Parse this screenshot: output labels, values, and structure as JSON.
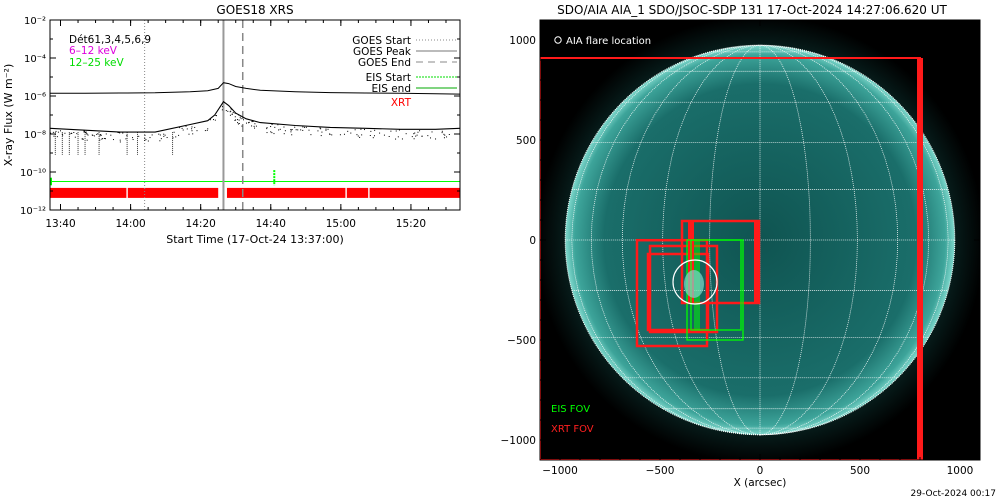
{
  "colors": {
    "xrt": "#ff0000",
    "eis": "#00ff00",
    "goes_low": "#dd00dd",
    "goes_high": "#00dd00",
    "aia_disk": "#1f7f7a",
    "aia_bright": "#7fd8cc",
    "grid": "#ffffff"
  },
  "chart_data": [
    {
      "type": "line",
      "title": "GOES18 XRS",
      "xlabel": "Start Time (17-Oct-24 13:37:00)",
      "ylabel": "X-ray Flux (W m⁻²)",
      "ylog": true,
      "xlim": [
        0,
        117
      ],
      "ylim": [
        -12,
        -2
      ],
      "x_ticks": [
        3,
        23,
        43,
        63,
        83,
        103
      ],
      "x_tick_labels": [
        "13:40",
        "14:00",
        "14:20",
        "14:40",
        "15:00",
        "15:20"
      ],
      "y_ticks": [
        -12,
        -10,
        -8,
        -6,
        -4,
        -2
      ],
      "y_tick_labels": [
        "10⁻¹²",
        "10⁻¹⁰",
        "10⁻⁸",
        "10⁻⁶",
        "10⁻⁴",
        "10⁻²"
      ],
      "det_label": "Dét61,3,4,5,6,9",
      "band_labels": [
        "6–12 keV",
        "12–25 keV"
      ],
      "legend_labels": [
        "GOES Start",
        "GOES Peak",
        "GOES End",
        "EIS Start",
        "EIS end",
        "XRT"
      ],
      "series": [
        {
          "name": "6–12 keV",
          "x": [
            0,
            10,
            20,
            30,
            40,
            45,
            48,
            49.5,
            51,
            53,
            56,
            60,
            70,
            80,
            90,
            100,
            110,
            117
          ],
          "y": [
            -5.85,
            -5.86,
            -5.84,
            -5.83,
            -5.78,
            -5.72,
            -5.6,
            -5.3,
            -5.35,
            -5.5,
            -5.6,
            -5.7,
            -5.78,
            -5.82,
            -5.84,
            -5.86,
            -5.88,
            -5.9
          ]
        },
        {
          "name": "12–25 keV",
          "x": [
            0,
            10,
            20,
            30,
            40,
            45,
            47,
            49.5,
            51,
            53,
            56,
            60,
            70,
            80,
            90,
            100,
            110,
            117
          ],
          "y": [
            -7.7,
            -7.8,
            -7.9,
            -7.9,
            -7.5,
            -7.3,
            -7.0,
            -6.3,
            -6.5,
            -6.9,
            -7.2,
            -7.4,
            -7.55,
            -7.65,
            -7.7,
            -7.75,
            -7.75,
            -7.7
          ]
        }
      ],
      "goes_start": 27,
      "goes_peak": 49.5,
      "goes_end": 55,
      "eis_start": 64,
      "eis_flux": -10.5,
      "xrt_intervals": [
        [
          0,
          21.8
        ],
        [
          22.2,
          48
        ],
        [
          50.5,
          84.3
        ],
        [
          84.7,
          90.8
        ],
        [
          91.2,
          117
        ]
      ],
      "xrt_level": -11.1
    },
    {
      "type": "image",
      "title": "SDO/AIA AIA_1 SDO/JSOC-SDP 131 17-Oct-2024 14:27:06.620 UT",
      "xlabel": "X (arcsec)",
      "ylabel": "",
      "xlim": [
        -1100,
        1100
      ],
      "ylim": [
        -1100,
        1100
      ],
      "x_ticks": [
        -1000,
        -500,
        0,
        500,
        1000
      ],
      "y_ticks": [
        -1000,
        -500,
        0,
        500,
        1000
      ],
      "solar_radius": 974,
      "flare_location_label": "AIA flare location",
      "flare_location": [
        -325,
        -210
      ],
      "fov_labels": [
        "EIS FOV",
        "XRT FOV"
      ],
      "xrt_fov": [
        [
          -1100,
          -1100,
          800,
          910
        ],
        [
          -615,
          -530,
          -265,
          -1
        ],
        [
          -560,
          -450,
          -260,
          -70
        ],
        [
          -550,
          -460,
          -215,
          -30
        ],
        [
          -390,
          -315,
          -5,
          95
        ]
      ],
      "eis_fov": [
        [
          -365,
          -500,
          -85,
          0
        ],
        [
          -345,
          -450,
          -95,
          0
        ]
      ],
      "footer": "29-Oct-2024 00:17"
    }
  ]
}
